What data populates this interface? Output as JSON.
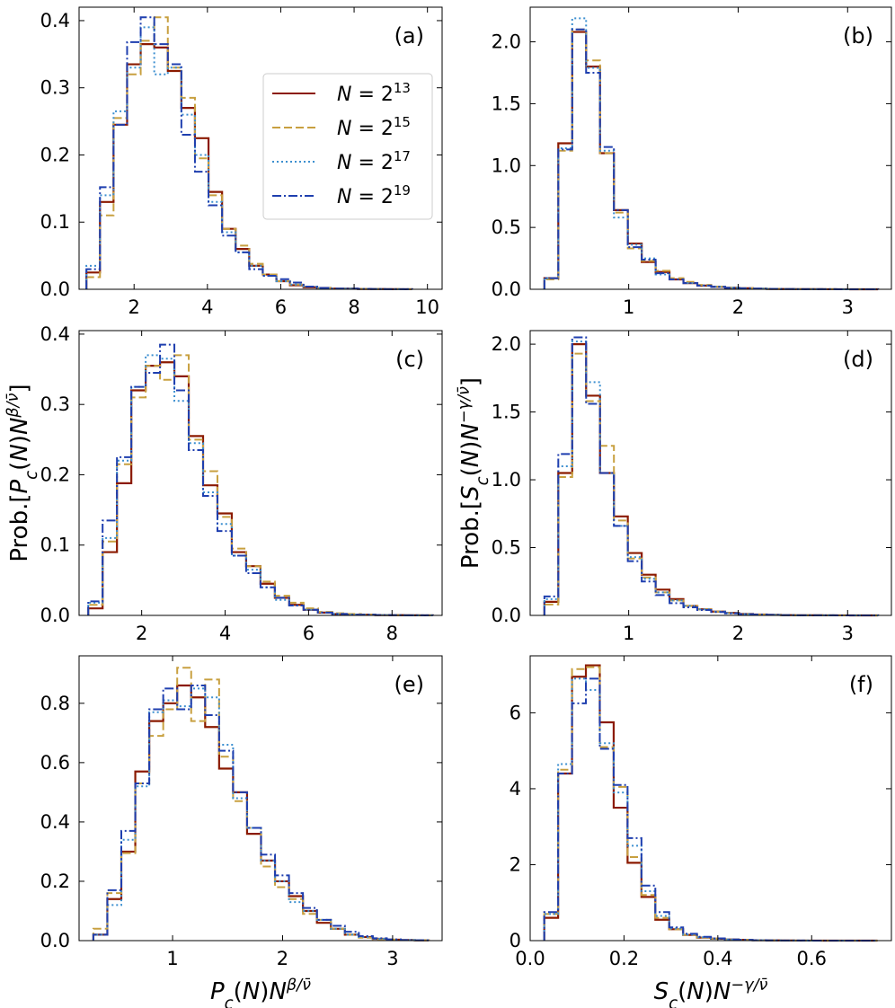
{
  "chart_data": [
    {
      "type": "histogram",
      "panel_label": "(a)",
      "xlim": [
        0.5,
        10.4
      ],
      "ylim": [
        0,
        0.42
      ],
      "xticks": [
        2,
        4,
        6,
        8,
        10
      ],
      "yticks": [
        0.0,
        0.1,
        0.2,
        0.3,
        0.4
      ],
      "xlabel": "",
      "ylabel": "",
      "legend": {
        "placement": "upper-middle"
      },
      "bin_edges": [
        0.7,
        1.07,
        1.44,
        1.81,
        2.18,
        2.55,
        2.92,
        3.29,
        3.66,
        4.03,
        4.4,
        4.77,
        5.14,
        5.51,
        5.88,
        6.25,
        6.62,
        6.99,
        7.36,
        7.73,
        8.1,
        8.47,
        8.84,
        9.21,
        9.58
      ],
      "series": [
        {
          "name": "N = 2^13",
          "values": [
            0.025,
            0.13,
            0.245,
            0.335,
            0.365,
            0.36,
            0.325,
            0.27,
            0.225,
            0.145,
            0.09,
            0.06,
            0.035,
            0.022,
            0.012,
            0.006,
            0.003,
            0.002,
            0.001,
            0.001,
            0.0005,
            0.0003,
            0.0002,
            0.0001
          ]
        },
        {
          "name": "N = 2^15",
          "values": [
            0.018,
            0.11,
            0.255,
            0.32,
            0.37,
            0.405,
            0.33,
            0.285,
            0.195,
            0.14,
            0.09,
            0.065,
            0.038,
            0.022,
            0.012,
            0.007,
            0.004,
            0.002,
            0.001,
            0.001,
            0.0005,
            0.0003,
            0.0002,
            0.0001
          ]
        },
        {
          "name": "N = 2^17",
          "values": [
            0.035,
            0.14,
            0.265,
            0.33,
            0.39,
            0.32,
            0.33,
            0.26,
            0.2,
            0.13,
            0.085,
            0.055,
            0.035,
            0.02,
            0.012,
            0.007,
            0.004,
            0.002,
            0.001,
            0.001,
            0.0005,
            0.0003,
            0.0002,
            0.0001
          ]
        },
        {
          "name": "N = 2^19",
          "values": [
            0.03,
            0.152,
            0.245,
            0.368,
            0.405,
            0.365,
            0.335,
            0.23,
            0.175,
            0.125,
            0.08,
            0.055,
            0.03,
            0.02,
            0.015,
            0.01,
            0.004,
            0.002,
            0.001,
            0.001,
            0.0005,
            0.0003,
            0.0002,
            0.0001
          ]
        }
      ]
    },
    {
      "type": "histogram",
      "panel_label": "(b)",
      "xlim": [
        0.1,
        3.4
      ],
      "ylim": [
        0,
        2.28
      ],
      "xticks": [
        1,
        2,
        3
      ],
      "yticks": [
        0.0,
        0.5,
        1.0,
        1.5,
        2.0
      ],
      "xlabel": "",
      "ylabel": "",
      "bin_edges": [
        0.23,
        0.357,
        0.484,
        0.611,
        0.738,
        0.865,
        0.992,
        1.119,
        1.246,
        1.373,
        1.5,
        1.627,
        1.754,
        1.881,
        2.008,
        2.135,
        2.262,
        2.389,
        2.516,
        2.643,
        2.77,
        2.897,
        3.024,
        3.151,
        3.278
      ],
      "series": [
        {
          "name": "N = 2^13",
          "values": [
            0.09,
            1.18,
            2.08,
            1.8,
            1.1,
            0.64,
            0.37,
            0.22,
            0.14,
            0.08,
            0.05,
            0.03,
            0.02,
            0.012,
            0.008,
            0.005,
            0.003,
            0.002,
            0.001,
            0.001,
            0.0005,
            0.0003,
            0.0002,
            0.0001
          ]
        },
        {
          "name": "N = 2^15",
          "values": [
            0.08,
            1.12,
            2.1,
            1.85,
            1.1,
            0.62,
            0.33,
            0.23,
            0.15,
            0.09,
            0.06,
            0.035,
            0.022,
            0.014,
            0.009,
            0.005,
            0.003,
            0.002,
            0.001,
            0.001,
            0.0005,
            0.0003,
            0.0002,
            0.0001
          ]
        },
        {
          "name": "N = 2^17",
          "values": [
            0.09,
            1.14,
            2.19,
            1.79,
            1.12,
            0.58,
            0.36,
            0.25,
            0.12,
            0.08,
            0.05,
            0.03,
            0.02,
            0.012,
            0.008,
            0.005,
            0.003,
            0.002,
            0.001,
            0.001,
            0.0005,
            0.0003,
            0.0002,
            0.0001
          ]
        },
        {
          "name": "N = 2^19",
          "values": [
            0.09,
            1.13,
            2.1,
            1.75,
            1.15,
            0.64,
            0.34,
            0.24,
            0.13,
            0.08,
            0.05,
            0.03,
            0.02,
            0.012,
            0.008,
            0.005,
            0.003,
            0.002,
            0.001,
            0.001,
            0.0005,
            0.0003,
            0.0002,
            0.0001
          ]
        }
      ]
    },
    {
      "type": "histogram",
      "panel_label": "(c)",
      "xlim": [
        0.5,
        9.2
      ],
      "ylim": [
        0,
        0.405
      ],
      "xticks": [
        2,
        4,
        6,
        8
      ],
      "yticks": [
        0.0,
        0.1,
        0.2,
        0.3,
        0.4
      ],
      "xlabel": "",
      "ylabel": "Prob.[P_c(N)N^{β/ν̄}]",
      "bin_edges": [
        0.72,
        1.064,
        1.408,
        1.752,
        2.096,
        2.44,
        2.784,
        3.128,
        3.472,
        3.816,
        4.16,
        4.504,
        4.848,
        5.192,
        5.536,
        5.88,
        6.224,
        6.568,
        6.912,
        7.256,
        7.6,
        7.944,
        8.288,
        8.632,
        8.976
      ],
      "series": [
        {
          "name": "N = 2^13",
          "values": [
            0.01,
            0.09,
            0.188,
            0.32,
            0.355,
            0.36,
            0.34,
            0.255,
            0.185,
            0.145,
            0.09,
            0.07,
            0.045,
            0.025,
            0.015,
            0.008,
            0.004,
            0.002,
            0.001,
            0.001,
            0.0005,
            0.0003,
            0.0002,
            0.0001
          ]
        },
        {
          "name": "N = 2^15",
          "values": [
            0.015,
            0.105,
            0.215,
            0.31,
            0.355,
            0.335,
            0.37,
            0.25,
            0.205,
            0.14,
            0.095,
            0.07,
            0.048,
            0.028,
            0.018,
            0.01,
            0.005,
            0.003,
            0.002,
            0.001,
            0.0005,
            0.0003,
            0.0002,
            0.0001
          ]
        },
        {
          "name": "N = 2^17",
          "values": [
            0.018,
            0.11,
            0.22,
            0.325,
            0.37,
            0.365,
            0.305,
            0.245,
            0.175,
            0.13,
            0.085,
            0.065,
            0.04,
            0.022,
            0.014,
            0.008,
            0.004,
            0.002,
            0.001,
            0.001,
            0.0005,
            0.0003,
            0.0002,
            0.0001
          ]
        },
        {
          "name": "N = 2^19",
          "values": [
            0.02,
            0.135,
            0.225,
            0.325,
            0.345,
            0.385,
            0.32,
            0.235,
            0.17,
            0.12,
            0.085,
            0.06,
            0.04,
            0.025,
            0.014,
            0.008,
            0.004,
            0.002,
            0.001,
            0.001,
            0.0005,
            0.0003,
            0.0002,
            0.0001
          ]
        }
      ]
    },
    {
      "type": "histogram",
      "panel_label": "(d)",
      "xlim": [
        0.1,
        3.4
      ],
      "ylim": [
        0,
        2.1
      ],
      "xticks": [
        1,
        2,
        3
      ],
      "yticks": [
        0.0,
        0.5,
        1.0,
        1.5,
        2.0
      ],
      "xlabel": "",
      "ylabel": "Prob.[S_c(N)N^{−γ/ν̄}]",
      "bin_edges": [
        0.23,
        0.357,
        0.484,
        0.611,
        0.738,
        0.865,
        0.992,
        1.119,
        1.246,
        1.373,
        1.5,
        1.627,
        1.754,
        1.881,
        2.008,
        2.135,
        2.262,
        2.389,
        2.516,
        2.643,
        2.77,
        2.897,
        3.024,
        3.151,
        3.278
      ],
      "series": [
        {
          "name": "N = 2^13",
          "values": [
            0.1,
            1.05,
            2.0,
            1.62,
            1.05,
            0.73,
            0.46,
            0.3,
            0.19,
            0.12,
            0.07,
            0.045,
            0.028,
            0.018,
            0.011,
            0.007,
            0.004,
            0.002,
            0.001,
            0.001,
            0.0005,
            0.0003,
            0.0002,
            0.0001
          ]
        },
        {
          "name": "N = 2^15",
          "values": [
            0.08,
            1.02,
            1.93,
            1.58,
            1.25,
            0.7,
            0.42,
            0.28,
            0.17,
            0.11,
            0.07,
            0.045,
            0.028,
            0.017,
            0.01,
            0.006,
            0.004,
            0.002,
            0.001,
            0.001,
            0.0005,
            0.0003,
            0.0002,
            0.0001
          ]
        },
        {
          "name": "N = 2^17",
          "values": [
            0.12,
            1.1,
            2.02,
            1.72,
            1.05,
            0.66,
            0.43,
            0.27,
            0.17,
            0.11,
            0.07,
            0.045,
            0.028,
            0.017,
            0.01,
            0.006,
            0.004,
            0.002,
            0.001,
            0.001,
            0.0005,
            0.0003,
            0.0002,
            0.0001
          ]
        },
        {
          "name": "N = 2^19",
          "values": [
            0.14,
            1.19,
            2.05,
            1.56,
            1.05,
            0.66,
            0.4,
            0.25,
            0.15,
            0.09,
            0.06,
            0.04,
            0.025,
            0.015,
            0.009,
            0.006,
            0.004,
            0.002,
            0.001,
            0.001,
            0.0005,
            0.0003,
            0.0002,
            0.0001
          ]
        }
      ]
    },
    {
      "type": "histogram",
      "panel_label": "(e)",
      "xlim": [
        0.15,
        3.45
      ],
      "ylim": [
        0,
        0.96
      ],
      "xticks": [
        1,
        2,
        3
      ],
      "yticks": [
        0.0,
        0.2,
        0.4,
        0.6,
        0.8
      ],
      "xlabel": "P_c(N)N^{β/ν̄}",
      "ylabel": "",
      "bin_edges": [
        0.28,
        0.407,
        0.534,
        0.661,
        0.788,
        0.915,
        1.042,
        1.169,
        1.296,
        1.423,
        1.55,
        1.677,
        1.804,
        1.931,
        2.058,
        2.185,
        2.312,
        2.439,
        2.566,
        2.693,
        2.82,
        2.947,
        3.074,
        3.201,
        3.328
      ],
      "series": [
        {
          "name": "N = 2^13",
          "values": [
            0.02,
            0.14,
            0.3,
            0.57,
            0.74,
            0.8,
            0.86,
            0.82,
            0.72,
            0.58,
            0.5,
            0.36,
            0.27,
            0.2,
            0.15,
            0.1,
            0.06,
            0.04,
            0.02,
            0.012,
            0.006,
            0.003,
            0.002,
            0.001
          ]
        },
        {
          "name": "N = 2^15",
          "values": [
            0.04,
            0.16,
            0.295,
            0.53,
            0.69,
            0.78,
            0.92,
            0.74,
            0.88,
            0.62,
            0.47,
            0.38,
            0.25,
            0.18,
            0.14,
            0.09,
            0.07,
            0.04,
            0.02,
            0.01,
            0.005,
            0.003,
            0.002,
            0.001
          ]
        },
        {
          "name": "N = 2^17",
          "values": [
            0.02,
            0.12,
            0.34,
            0.52,
            0.77,
            0.81,
            0.79,
            0.85,
            0.82,
            0.66,
            0.48,
            0.38,
            0.27,
            0.2,
            0.13,
            0.1,
            0.07,
            0.04,
            0.02,
            0.012,
            0.006,
            0.003,
            0.002,
            0.001
          ]
        },
        {
          "name": "N = 2^19",
          "values": [
            0.02,
            0.17,
            0.37,
            0.53,
            0.78,
            0.85,
            0.78,
            0.86,
            0.76,
            0.64,
            0.5,
            0.38,
            0.29,
            0.22,
            0.16,
            0.11,
            0.07,
            0.05,
            0.03,
            0.015,
            0.008,
            0.004,
            0.002,
            0.001
          ]
        }
      ]
    },
    {
      "type": "histogram",
      "panel_label": "(f)",
      "xlim": [
        0.0,
        0.77
      ],
      "ylim": [
        0,
        7.5
      ],
      "xticks": [
        0.0,
        0.2,
        0.4,
        0.6
      ],
      "yticks": [
        0,
        2,
        4,
        6
      ],
      "xlabel": "S_c(N)N^{−γ/ν̄}",
      "ylabel": "",
      "bin_edges": [
        0.03,
        0.0596,
        0.0892,
        0.1188,
        0.1484,
        0.178,
        0.2076,
        0.2372,
        0.2668,
        0.2964,
        0.326,
        0.3556,
        0.3852,
        0.4148,
        0.4444,
        0.474,
        0.5036,
        0.5332,
        0.5628,
        0.5924,
        0.622,
        0.6516,
        0.6812,
        0.7108,
        0.7404
      ],
      "series": [
        {
          "name": "N = 2^13",
          "values": [
            0.6,
            4.4,
            6.95,
            7.25,
            5.75,
            3.5,
            2.05,
            1.15,
            0.55,
            0.3,
            0.15,
            0.08,
            0.05,
            0.03,
            0.02,
            0.01,
            0.006,
            0.004,
            0.002,
            0.001,
            0.0008,
            0.0005,
            0.0003,
            0.0001
          ]
        },
        {
          "name": "N = 2^15",
          "values": [
            0.7,
            4.5,
            7.15,
            7.2,
            5.1,
            4.05,
            2.2,
            1.2,
            0.6,
            0.3,
            0.15,
            0.08,
            0.05,
            0.03,
            0.02,
            0.01,
            0.006,
            0.004,
            0.002,
            0.001,
            0.0008,
            0.0005,
            0.0003,
            0.0001
          ]
        },
        {
          "name": "N = 2^17",
          "values": [
            0.7,
            4.65,
            6.9,
            6.6,
            5.2,
            3.9,
            2.5,
            1.3,
            0.65,
            0.32,
            0.16,
            0.09,
            0.05,
            0.03,
            0.02,
            0.01,
            0.006,
            0.004,
            0.002,
            0.001,
            0.0008,
            0.0005,
            0.0003,
            0.0001
          ]
        },
        {
          "name": "N = 2^19",
          "values": [
            0.75,
            4.4,
            6.25,
            6.9,
            5.05,
            4.1,
            2.7,
            1.45,
            0.75,
            0.35,
            0.18,
            0.1,
            0.06,
            0.03,
            0.02,
            0.01,
            0.006,
            0.004,
            0.002,
            0.001,
            0.0008,
            0.0005,
            0.0003,
            0.0001
          ]
        }
      ]
    }
  ],
  "legend": {
    "entries": [
      {
        "prefix": "N = 2",
        "exp": "13"
      },
      {
        "prefix": "N = 2",
        "exp": "15"
      },
      {
        "prefix": "N = 2",
        "exp": "17"
      },
      {
        "prefix": "N = 2",
        "exp": "19"
      }
    ]
  },
  "styles": {
    "series_colors": [
      "#8B1A00",
      "#C8A040",
      "#3C8FD0",
      "#1F3FAF"
    ],
    "series_dash": [
      "solid",
      "dashed",
      "dotted",
      "dash-dot"
    ]
  }
}
